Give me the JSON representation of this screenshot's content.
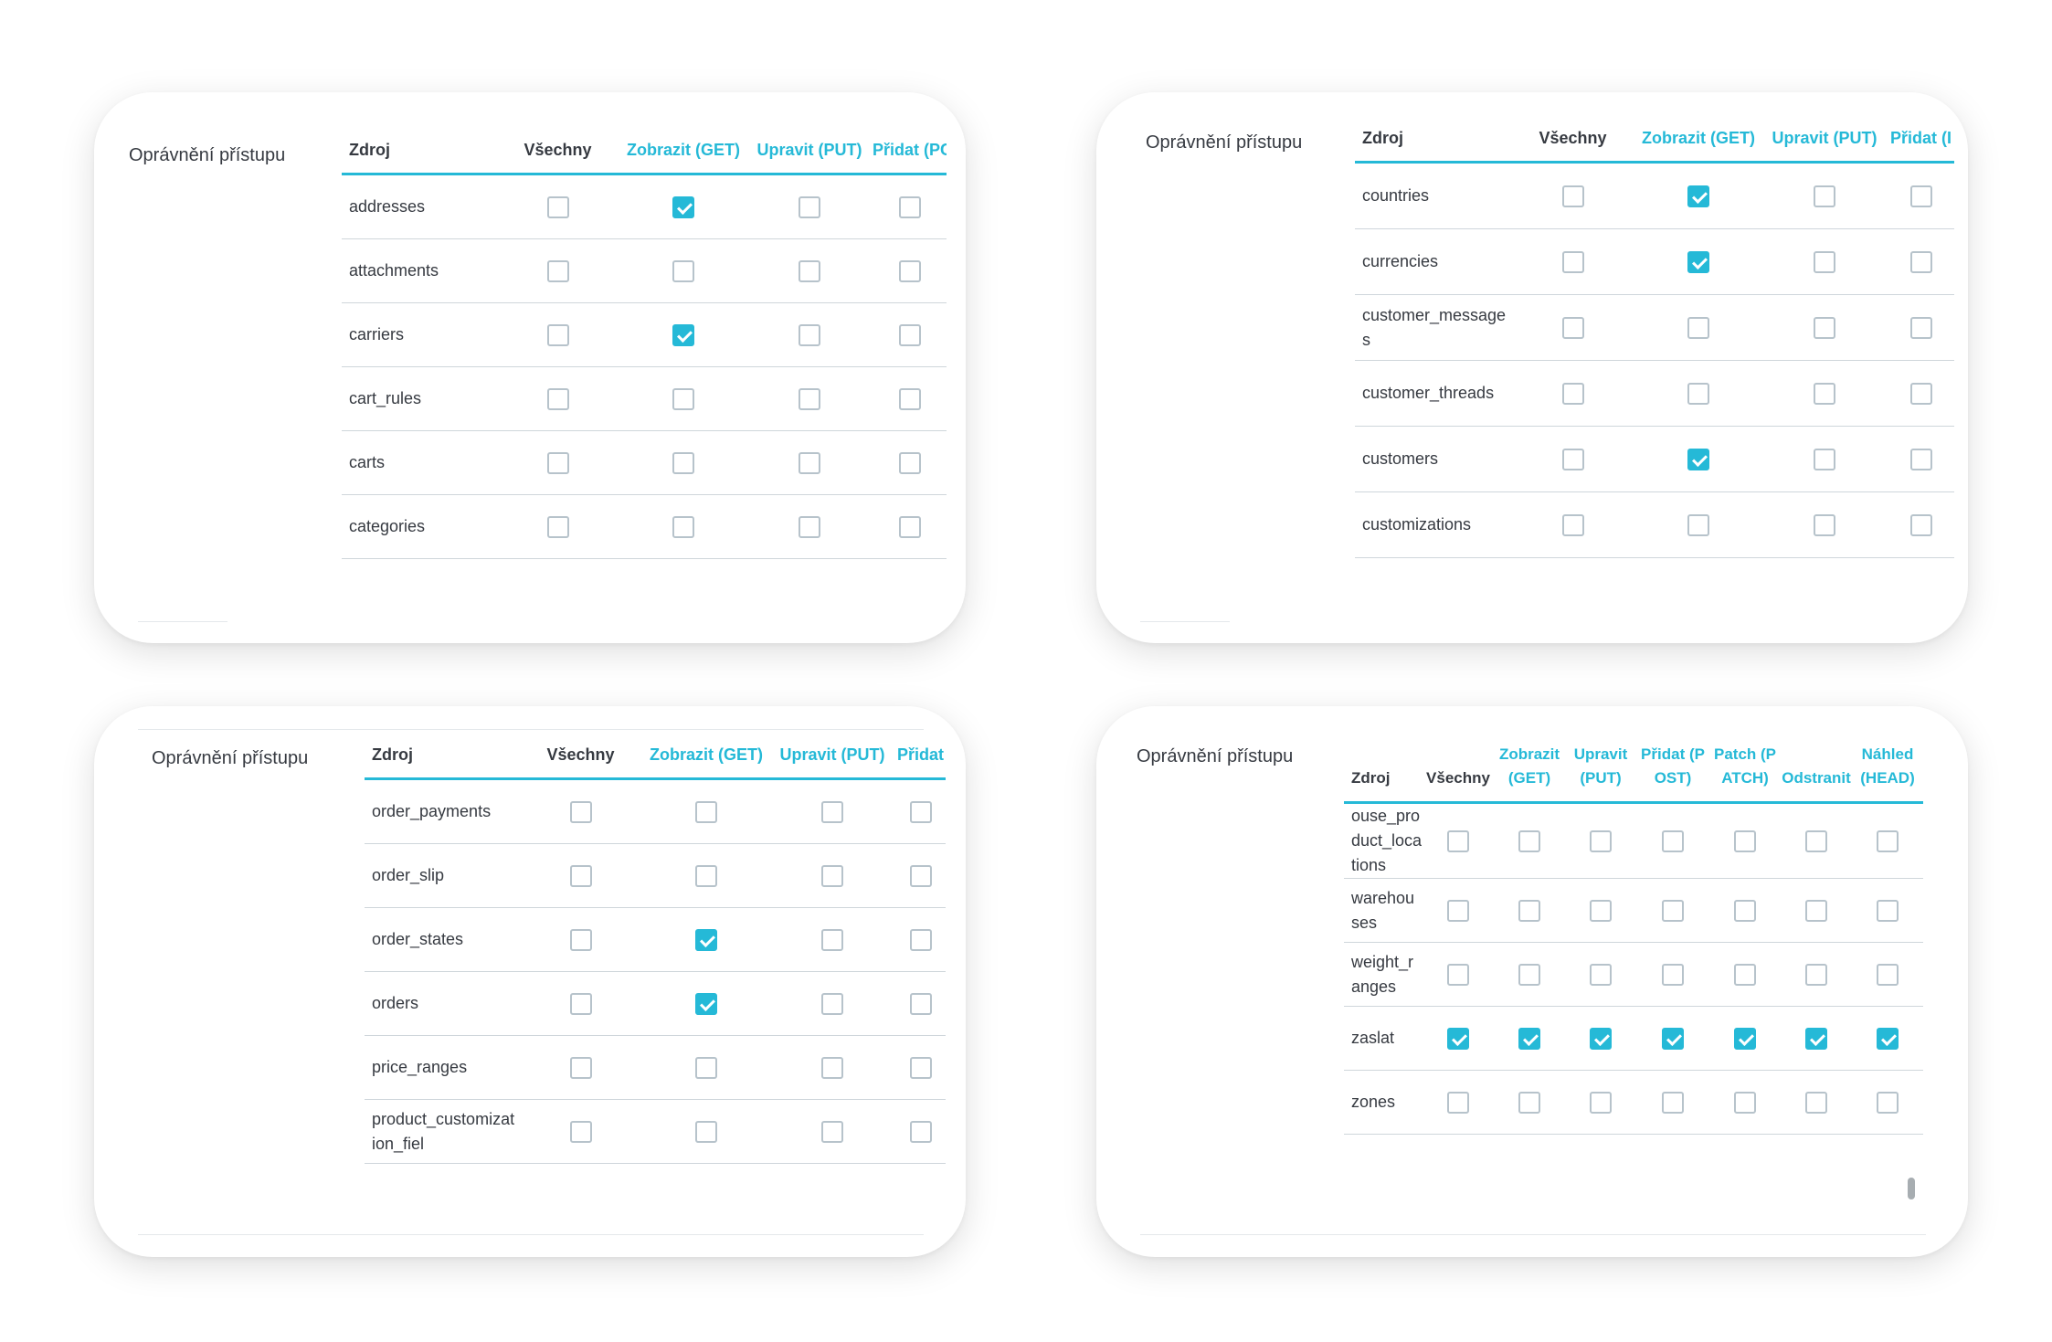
{
  "colors": {
    "accent": "#25b9d7",
    "text": "#363a41",
    "checkbox_border": "#b7c3cb"
  },
  "panels": [
    {
      "label": "Oprávnění přístupu",
      "headers": [
        "Zdroj",
        "Všechny",
        "Zobrazit (GET)",
        "Upravit (PUT)",
        "Přidat (PC"
      ],
      "rows": [
        {
          "resource": "addresses",
          "checks": [
            false,
            true,
            false,
            false
          ]
        },
        {
          "resource": "attachments",
          "checks": [
            false,
            false,
            false,
            false
          ]
        },
        {
          "resource": "carriers",
          "checks": [
            false,
            true,
            false,
            false
          ]
        },
        {
          "resource": "cart_rules",
          "checks": [
            false,
            false,
            false,
            false
          ]
        },
        {
          "resource": "carts",
          "checks": [
            false,
            false,
            false,
            false
          ]
        },
        {
          "resource": "categories",
          "checks": [
            false,
            false,
            false,
            false
          ]
        }
      ]
    },
    {
      "label": "Oprávnění přístupu",
      "headers": [
        "Zdroj",
        "Všechny",
        "Zobrazit (GET)",
        "Upravit (PUT)",
        "Přidat (I"
      ],
      "rows": [
        {
          "resource": "countries",
          "checks": [
            false,
            true,
            false,
            false
          ]
        },
        {
          "resource": "currencies",
          "checks": [
            false,
            true,
            false,
            false
          ]
        },
        {
          "resource": "customer_messages",
          "checks": [
            false,
            false,
            false,
            false
          ]
        },
        {
          "resource": "customer_threads",
          "checks": [
            false,
            false,
            false,
            false
          ]
        },
        {
          "resource": "customers",
          "checks": [
            false,
            true,
            false,
            false
          ]
        },
        {
          "resource": "customizations",
          "checks": [
            false,
            false,
            false,
            false
          ]
        }
      ]
    },
    {
      "label": "Oprávnění přístupu",
      "headers": [
        "Zdroj",
        "Všechny",
        "Zobrazit (GET)",
        "Upravit (PUT)",
        "Přidat"
      ],
      "rows": [
        {
          "resource": "order_payments",
          "checks": [
            false,
            false,
            false,
            false
          ]
        },
        {
          "resource": "order_slip",
          "checks": [
            false,
            false,
            false,
            false
          ]
        },
        {
          "resource": "order_states",
          "checks": [
            false,
            true,
            false,
            false
          ]
        },
        {
          "resource": "orders",
          "checks": [
            false,
            true,
            false,
            false
          ]
        },
        {
          "resource": "price_ranges",
          "checks": [
            false,
            false,
            false,
            false
          ]
        },
        {
          "resource": "product_customization_fiel",
          "checks": [
            false,
            false,
            false,
            false
          ]
        }
      ]
    },
    {
      "label": "Oprávnění přístupu",
      "headers": [
        "Zdroj",
        "Všechny",
        "Zobrazit (GET)",
        "Upravit (PUT)",
        "Přidat (POST)",
        "Patch (PATCH)",
        "Odstranit",
        "Náhled (HEAD)"
      ],
      "rows": [
        {
          "resource": "ouse_product_locations",
          "checks": [
            false,
            false,
            false,
            false,
            false,
            false,
            false
          ]
        },
        {
          "resource": "warehouses",
          "checks": [
            false,
            false,
            false,
            false,
            false,
            false,
            false
          ]
        },
        {
          "resource": "weight_ranges",
          "checks": [
            false,
            false,
            false,
            false,
            false,
            false,
            false
          ]
        },
        {
          "resource": "zaslat",
          "checks": [
            true,
            true,
            true,
            true,
            true,
            true,
            true
          ]
        },
        {
          "resource": "zones",
          "checks": [
            false,
            false,
            false,
            false,
            false,
            false,
            false
          ]
        }
      ]
    }
  ]
}
